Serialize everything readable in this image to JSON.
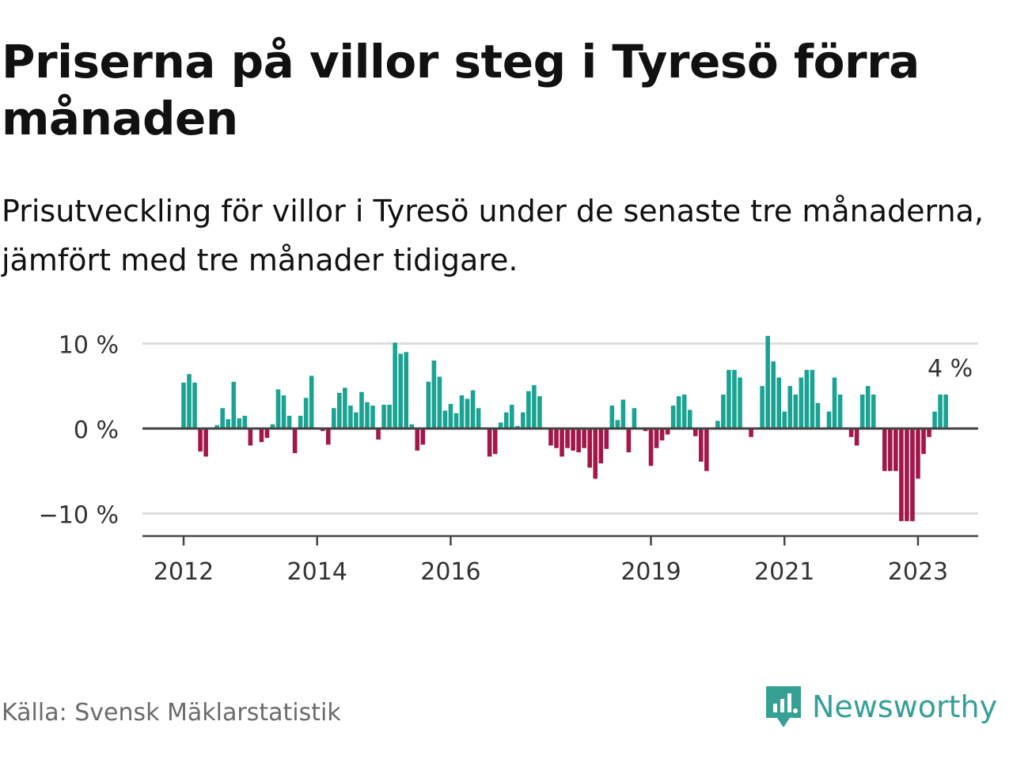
{
  "header": {
    "title": "Priserna på villor steg i Tyresö förra månaden",
    "subtitle": "Prisutveckling för villor i Tyresö under de senaste tre månaderna, jämfört med tre månader tidigare."
  },
  "footer": {
    "source": "Källa: Svensk Mäklarstatistik",
    "brand": "Newsworthy"
  },
  "colors": {
    "positive": "#1aa393",
    "negative": "#a3164a",
    "gridline": "#dddddd",
    "zero_line": "#444444",
    "brand": "#36a097"
  },
  "chart_data": {
    "type": "bar",
    "title": "",
    "xlabel": "",
    "ylabel": "",
    "unit": "%",
    "ylim": [
      -12.5,
      12.5
    ],
    "yticks": [
      {
        "value": 10,
        "label": "10 %"
      },
      {
        "value": 0,
        "label": "0 %"
      },
      {
        "value": -10,
        "label": "−10 %"
      }
    ],
    "xticks": [
      {
        "index": 0,
        "label": "2012"
      },
      {
        "index": 24,
        "label": "2014"
      },
      {
        "index": 48,
        "label": "2016"
      },
      {
        "index": 84,
        "label": "2019"
      },
      {
        "index": 108,
        "label": "2021"
      },
      {
        "index": 132,
        "label": "2023"
      }
    ],
    "start": "2012-01",
    "end": "2023-04",
    "last_value_label": "4 %",
    "values": [
      5.4,
      6.4,
      5.4,
      -2.7,
      -3.3,
      0,
      0.4,
      2.4,
      1.1,
      5.5,
      1.2,
      1.5,
      -2.0,
      0,
      -1.6,
      -1.1,
      0.5,
      4.6,
      3.9,
      1.5,
      -2.9,
      1.5,
      3.6,
      6.2,
      0,
      -0.3,
      -1.9,
      2.4,
      4.2,
      4.8,
      2.7,
      1.9,
      4.3,
      3.1,
      2.7,
      -1.3,
      2.8,
      2.8,
      10.1,
      8.8,
      9.0,
      0.5,
      -2.6,
      -1.9,
      5.5,
      8.0,
      6.1,
      2.1,
      2.9,
      1.8,
      3.9,
      3.5,
      4.5,
      2.4,
      0,
      -3.3,
      -3.0,
      0.7,
      1.9,
      2.8,
      0.3,
      1.9,
      4.4,
      5.1,
      3.8,
      0,
      -2.0,
      -2.3,
      -3.3,
      -2.3,
      -2.6,
      -2.8,
      -2.3,
      -4.6,
      -5.9,
      -4.1,
      -2.4,
      2.7,
      1.0,
      3.4,
      -2.8,
      2.4,
      0,
      -0.3,
      -4.4,
      -2.3,
      -1.4,
      -0.7,
      2.7,
      3.8,
      4.0,
      2.2,
      -0.9,
      -3.9,
      -5.0,
      0,
      0.9,
      4.0,
      6.9,
      6.9,
      6.0,
      0,
      -1.0,
      0,
      5.0,
      10.9,
      7.9,
      6.0,
      2.0,
      5.0,
      4.0,
      6.0,
      6.9,
      6.9,
      3.0,
      0,
      2.0,
      6.0,
      4.0,
      0,
      -1.0,
      -2.0,
      4.0,
      5.0,
      4.0,
      0,
      -5.0,
      -5.0,
      -5.0,
      -10.9,
      -10.9,
      -10.9,
      -5.9,
      -3.0,
      -1.0,
      2.0,
      4.0,
      4.0
    ]
  }
}
